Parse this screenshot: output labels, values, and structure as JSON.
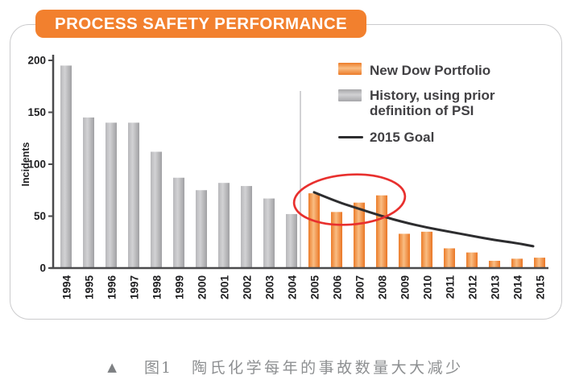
{
  "header": {
    "title": "PROCESS SAFETY PERFORMANCE"
  },
  "legend": {
    "position": "top-right",
    "items": [
      {
        "swatch": "orange-bar-swatch",
        "label": "New Dow Portfolio"
      },
      {
        "swatch": "gray-bar-swatch",
        "label_line1": "History, using prior",
        "label_line2": "definition of PSI"
      },
      {
        "swatch": "black-line-swatch",
        "label": "2015 Goal"
      }
    ]
  },
  "chart_data": {
    "type": "bar",
    "title": "PROCESS SAFETY PERFORMANCE",
    "xlabel": "",
    "ylabel": "Incidents",
    "ylim": [
      0,
      200
    ],
    "yticks": [
      0,
      50,
      100,
      150,
      200
    ],
    "grid": false,
    "legend_position": "top-right",
    "categories": [
      "1994",
      "1995",
      "1996",
      "1997",
      "1998",
      "1999",
      "2000",
      "2001",
      "2002",
      "2003",
      "2004",
      "2005",
      "2006",
      "2007",
      "2008",
      "2009",
      "2010",
      "2011",
      "2012",
      "2013",
      "2014",
      "2015"
    ],
    "series": [
      {
        "name": "History, using prior definition of PSI",
        "type": "bar",
        "color": "#ABABAE",
        "years": [
          "1994",
          "1995",
          "1996",
          "1997",
          "1998",
          "1999",
          "2000",
          "2001",
          "2002",
          "2003",
          "2004"
        ],
        "values": [
          195,
          145,
          140,
          140,
          112,
          87,
          75,
          82,
          79,
          67,
          52
        ]
      },
      {
        "name": "New Dow Portfolio",
        "type": "bar",
        "color": "#F2802E",
        "years": [
          "2005",
          "2006",
          "2007",
          "2008",
          "2009",
          "2010",
          "2011",
          "2012",
          "2013",
          "2014",
          "2015"
        ],
        "values": [
          72,
          54,
          63,
          70,
          33,
          35,
          19,
          15,
          7,
          9,
          10
        ]
      }
    ],
    "goal_line": {
      "name": "2015 Goal",
      "color": "#2d2d2f",
      "years": [
        "2005",
        "2006",
        "2007",
        "2008",
        "2009",
        "2010",
        "2011",
        "2012",
        "2013",
        "2014",
        "2015"
      ],
      "values": [
        73,
        64,
        57,
        50,
        44,
        39,
        35,
        31,
        27,
        24,
        21
      ]
    },
    "annotation": {
      "shape": "ellipse",
      "color": "#E8302E",
      "around_years": [
        "2005",
        "2006",
        "2007",
        "2008"
      ]
    },
    "divider": {
      "between": [
        "2004",
        "2005"
      ]
    }
  },
  "caption": {
    "marker": "▲",
    "label": "图1",
    "text": "陶氏化学每年的事故数量大大减少"
  },
  "colors": {
    "badge_orange": "#F2802E",
    "bar_orange_edge": "#EC7B28",
    "bar_orange_center": "#F9BD83",
    "bar_gray_edge": "#A4A4A7",
    "bar_gray_center": "#D2D2D4",
    "axis": "#4a4a4c",
    "goal_line": "#2d2d2f",
    "annotation_red": "#E8302E",
    "card_border": "#cbcbcd",
    "caption_text": "#8d8f91"
  }
}
